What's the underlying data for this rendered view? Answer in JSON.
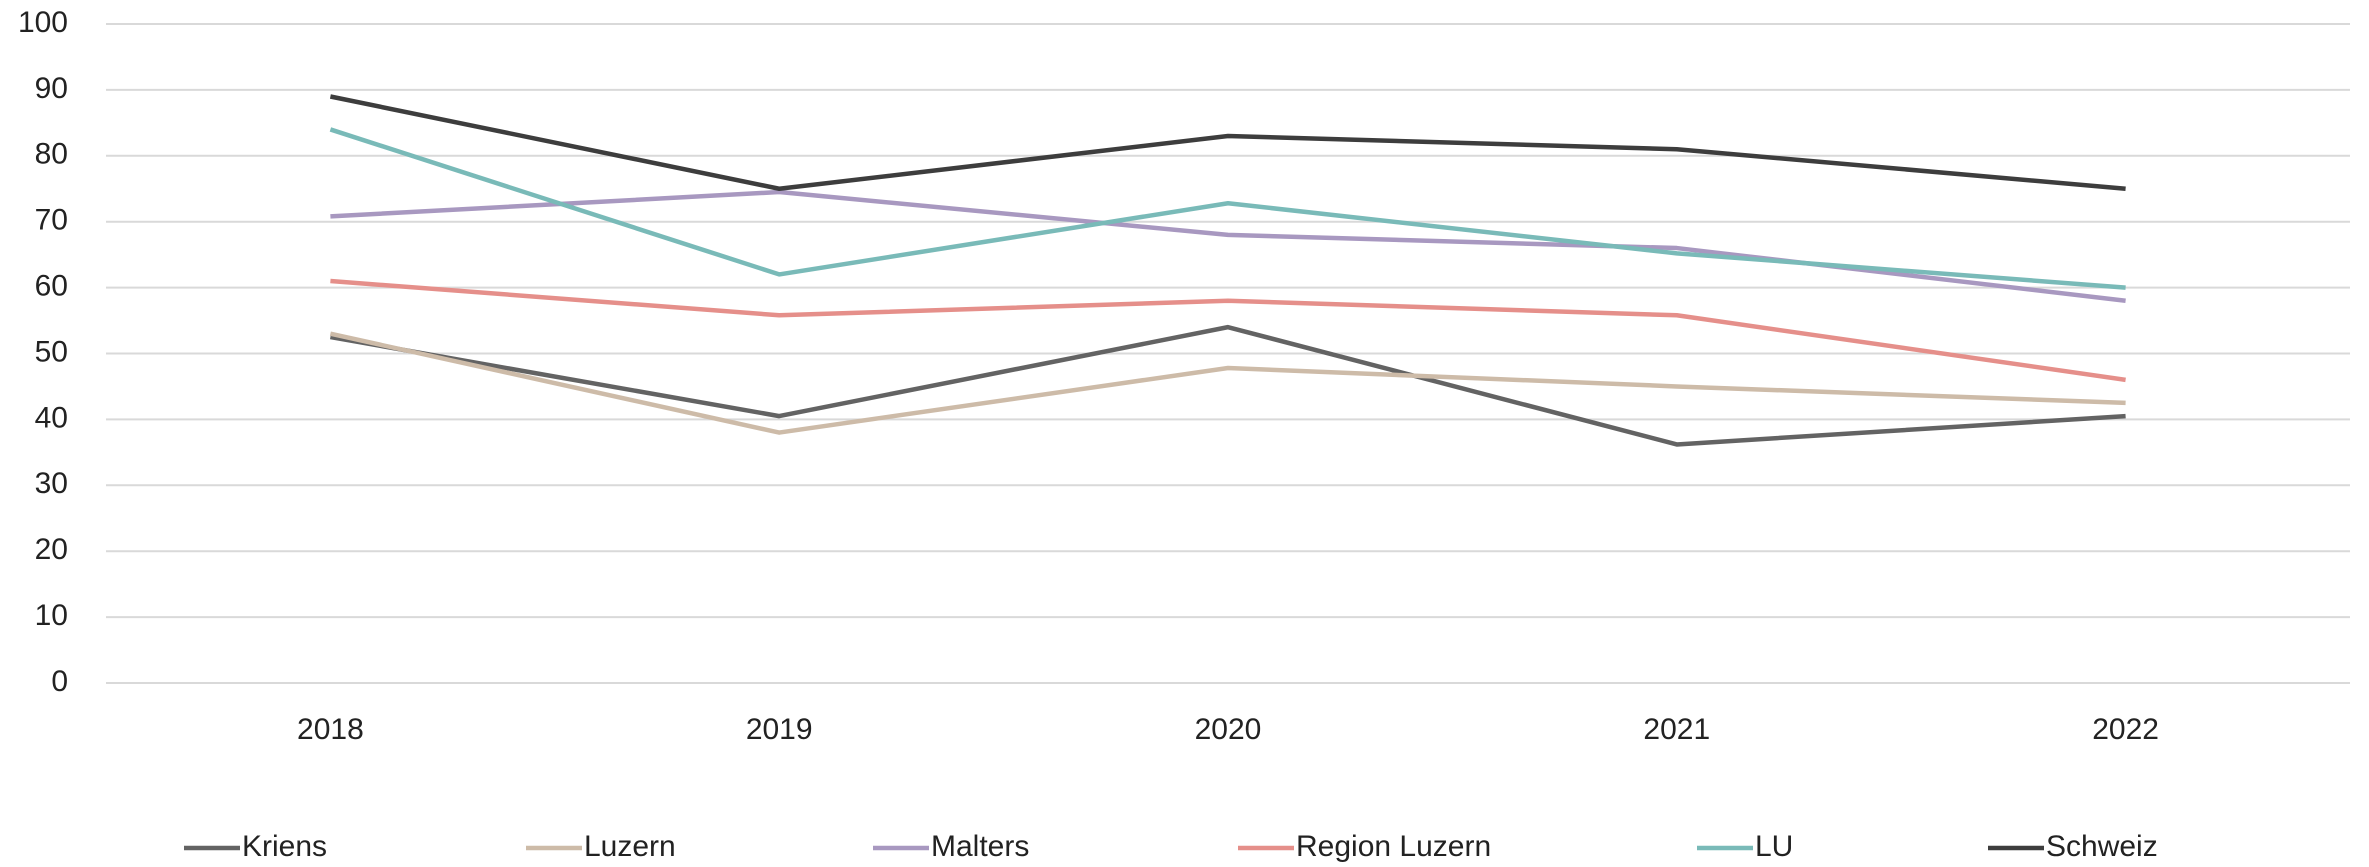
{
  "chart_data": {
    "type": "line",
    "categories": [
      "2018",
      "2019",
      "2020",
      "2021",
      "2022"
    ],
    "series": [
      {
        "name": "Kriens",
        "color": "#636363",
        "values": [
          52.5,
          40.5,
          54,
          36.2,
          40.5
        ]
      },
      {
        "name": "Luzern",
        "color": "#cdbba8",
        "values": [
          53,
          38,
          47.8,
          45,
          42.5
        ]
      },
      {
        "name": "Malters",
        "color": "#a898c0",
        "values": [
          70.8,
          74.5,
          68,
          66,
          58
        ]
      },
      {
        "name": "Region Luzern",
        "color": "#e58f8a",
        "values": [
          61,
          55.8,
          58,
          55.8,
          46
        ]
      },
      {
        "name": "LU",
        "color": "#79bab8",
        "values": [
          84,
          62,
          72.8,
          65.2,
          60
        ]
      },
      {
        "name": "Schweiz",
        "color": "#3d3d3d",
        "values": [
          89,
          75,
          83,
          81,
          75
        ]
      }
    ],
    "ylim": [
      0,
      100
    ],
    "yticks": [
      0,
      10,
      20,
      30,
      40,
      50,
      60,
      70,
      80,
      90,
      100
    ],
    "grid": true,
    "legend": "bottom"
  }
}
